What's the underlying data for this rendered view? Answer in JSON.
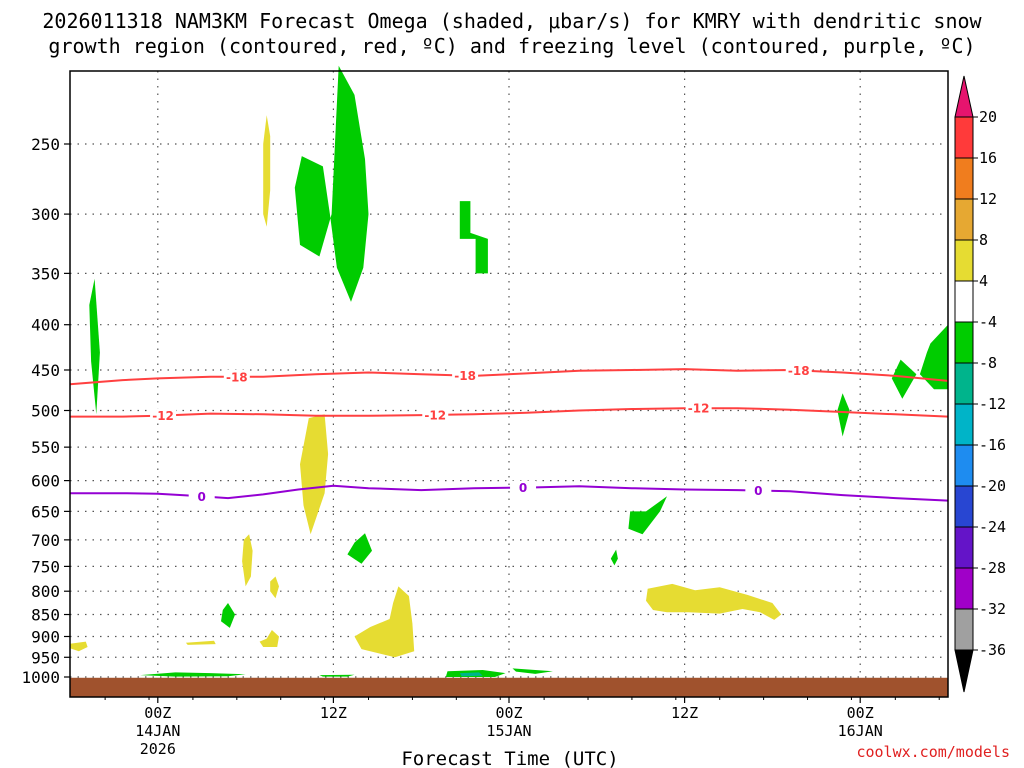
{
  "title_line1": "2026011318 NAM3KM Forecast Omega (shaded, μbar/s) for KMRY with dendritic snow",
  "title_line2": "growth region (contoured, red, ºC) and freezing level (contoured, purple, ºC)",
  "credit": "coolwx.com/models",
  "colors": {
    "green": "#00cc00",
    "yellow": "#e6dc32",
    "teal": "#00b48c",
    "ground": "#a0522d",
    "red_contour": "#ff4040",
    "purple_contour": "#9400d3",
    "grid": "#555555"
  },
  "chart_data": {
    "type": "heatmap",
    "title": "2026011318 NAM3KM Forecast Omega (shaded, μbar/s) for KMRY",
    "xlabel": "Forecast Time (UTC)",
    "ylabel": "",
    "x_range_hours": [
      -5,
      45
    ],
    "y_range_mb": [
      1015,
      200
    ],
    "y_ticks": [
      250,
      300,
      350,
      400,
      450,
      500,
      550,
      600,
      650,
      700,
      750,
      800,
      850,
      900,
      950,
      1000
    ],
    "x_ticks": [
      {
        "hour": 0,
        "lines": [
          "00Z",
          "14JAN",
          "2026"
        ]
      },
      {
        "hour": 10,
        "lines": [
          "12Z"
        ]
      },
      {
        "hour": 20,
        "lines": [
          "00Z",
          "15JAN"
        ]
      },
      {
        "hour": 30,
        "lines": [
          "12Z"
        ]
      },
      {
        "hour": 40,
        "lines": [
          "00Z",
          "16JAN"
        ]
      }
    ],
    "colorbar": {
      "labels": [
        20,
        16,
        12,
        8,
        4,
        -4,
        -8,
        -12,
        -16,
        -20,
        -24,
        -28,
        -32,
        -36
      ],
      "bands": [
        {
          "from": 20,
          "to": 16,
          "color": "#ff3a3a"
        },
        {
          "from": 16,
          "to": 12,
          "color": "#f07d1e"
        },
        {
          "from": 12,
          "to": 8,
          "color": "#e6a832"
        },
        {
          "from": 8,
          "to": 4,
          "color": "#e6dc32"
        },
        {
          "from": 4,
          "to": -4,
          "color": "#ffffff"
        },
        {
          "from": -4,
          "to": -8,
          "color": "#00cc00"
        },
        {
          "from": -8,
          "to": -12,
          "color": "#00b48c"
        },
        {
          "from": -12,
          "to": -16,
          "color": "#00b4c8"
        },
        {
          "from": -16,
          "to": -20,
          "color": "#1e8cf0"
        },
        {
          "from": -20,
          "to": -24,
          "color": "#2846d2"
        },
        {
          "from": -24,
          "to": -28,
          "color": "#6414c8"
        },
        {
          "from": -28,
          "to": -32,
          "color": "#a000c8"
        },
        {
          "from": -32,
          "to": -36,
          "color": "#a0a0a0"
        }
      ],
      "top_arrow_color": "#e6146e",
      "bottom_arrow_color": "#000000"
    },
    "contours": [
      {
        "name": "-18C isotherm",
        "label": "-18",
        "color": "#ff4040",
        "x": [
          -5,
          -2,
          0,
          3,
          6,
          9,
          12,
          15,
          18,
          21,
          24,
          27,
          30,
          33,
          36,
          39,
          42,
          45
        ],
        "y": [
          467,
          462,
          460,
          458,
          458,
          455,
          453,
          455,
          457,
          454,
          451,
          450,
          449,
          451,
          450,
          453,
          457,
          463
        ],
        "label_hours": [
          4.5,
          17.5,
          36.5
        ]
      },
      {
        "name": "-12C isotherm",
        "label": "-12",
        "color": "#ff4040",
        "x": [
          -5,
          -2,
          0,
          3,
          6,
          9,
          12,
          15,
          18,
          21,
          24,
          27,
          30,
          33,
          36,
          39,
          42,
          45
        ],
        "y": [
          508,
          508,
          507,
          504,
          505,
          507,
          507,
          506,
          505,
          503,
          500,
          498,
          497,
          497,
          499,
          502,
          505,
          508
        ],
        "label_hours": [
          0.3,
          15.8,
          30.8
        ]
      },
      {
        "name": "0C freezing level",
        "label": "0",
        "color": "#9400d3",
        "x": [
          -5,
          -2,
          0,
          2,
          4,
          6,
          8,
          10,
          12,
          15,
          18,
          21,
          24,
          27,
          30,
          33,
          36,
          39,
          42,
          45
        ],
        "y": [
          620,
          620,
          621,
          624,
          628,
          622,
          614,
          608,
          612,
          615,
          612,
          611,
          609,
          612,
          614,
          615,
          617,
          623,
          628,
          632
        ],
        "label_hours": [
          2.5,
          20.8,
          34.2
        ]
      }
    ],
    "omega_regions": [
      {
        "category": "-4 to -8",
        "color": "#00cc00",
        "points": [
          [
            10.3,
            204
          ],
          [
            11.2,
            220
          ],
          [
            11.8,
            260
          ],
          [
            12,
            300
          ],
          [
            11.7,
            345
          ],
          [
            11,
            377
          ],
          [
            10.2,
            345
          ],
          [
            9.8,
            300
          ],
          [
            9.4,
            265
          ],
          [
            8.2,
            258
          ],
          [
            7.8,
            280
          ],
          [
            8.1,
            325
          ],
          [
            9.2,
            335
          ],
          [
            9.9,
            300
          ]
        ]
      },
      {
        "category": "-4 to -8",
        "color": "#00cc00",
        "points": [
          [
            -3.6,
            355
          ],
          [
            -3.3,
            430
          ],
          [
            -3.5,
            505
          ],
          [
            -3.8,
            440
          ],
          [
            -3.9,
            380
          ]
        ]
      },
      {
        "category": "-4 to -8",
        "color": "#00cc00",
        "points": [
          [
            17.2,
            290
          ],
          [
            17.8,
            290
          ],
          [
            17.8,
            315
          ],
          [
            18.8,
            320
          ],
          [
            18.8,
            350
          ],
          [
            18.1,
            350
          ],
          [
            18.1,
            320
          ],
          [
            17.2,
            320
          ]
        ]
      },
      {
        "category": "-4 to -8",
        "color": "#00cc00",
        "points": [
          [
            44,
            420
          ],
          [
            45,
            400
          ],
          [
            45,
            473
          ],
          [
            44.2,
            473
          ],
          [
            43.4,
            455
          ],
          [
            43.8,
            430
          ]
        ]
      },
      {
        "category": "-4 to -8",
        "color": "#00cc00",
        "points": [
          [
            42.3,
            438
          ],
          [
            43.2,
            455
          ],
          [
            42.4,
            485
          ],
          [
            41.8,
            460
          ]
        ]
      },
      {
        "category": "-4 to -8",
        "color": "#00cc00",
        "points": [
          [
            39,
            478
          ],
          [
            39.4,
            500
          ],
          [
            39,
            535
          ],
          [
            38.7,
            500
          ]
        ]
      },
      {
        "category": "-4 to -8",
        "color": "#00cc00",
        "points": [
          [
            27.8,
            650
          ],
          [
            29,
            625
          ],
          [
            28.6,
            650
          ],
          [
            27.6,
            690
          ],
          [
            26.8,
            680
          ],
          [
            26.9,
            650
          ]
        ]
      },
      {
        "category": "-4 to -8",
        "color": "#00cc00",
        "points": [
          [
            11.8,
            688
          ],
          [
            12.2,
            720
          ],
          [
            11.6,
            745
          ],
          [
            10.8,
            727
          ],
          [
            11.2,
            705
          ]
        ]
      },
      {
        "category": "-4 to -8",
        "color": "#00cc00",
        "points": [
          [
            26.1,
            718
          ],
          [
            26.2,
            735
          ],
          [
            26,
            748
          ],
          [
            25.8,
            735
          ]
        ]
      },
      {
        "category": "-4 to -8",
        "color": "#00cc00",
        "points": [
          [
            4,
            825
          ],
          [
            4.4,
            850
          ],
          [
            4.1,
            880
          ],
          [
            3.6,
            865
          ],
          [
            3.7,
            840
          ]
        ]
      },
      {
        "category": "-4 to -8",
        "color": "#00cc00",
        "points": [
          [
            -1,
            995
          ],
          [
            1,
            988
          ],
          [
            3,
            990
          ],
          [
            5,
            993
          ],
          [
            4,
            998
          ],
          [
            1,
            999
          ]
        ]
      },
      {
        "category": "-4 to -8",
        "color": "#00cc00",
        "points": [
          [
            16.5,
            985
          ],
          [
            18.5,
            982
          ],
          [
            19.8,
            990
          ],
          [
            19.2,
            1000
          ],
          [
            16.4,
            1000
          ]
        ]
      },
      {
        "category": "-4 to -8",
        "color": "#00cc00",
        "points": [
          [
            20.2,
            978
          ],
          [
            22.5,
            985
          ],
          [
            21.5,
            992
          ],
          [
            20.4,
            986
          ]
        ]
      },
      {
        "category": "-4 to -8",
        "color": "#00cc00",
        "points": [
          [
            9.2,
            995
          ],
          [
            11.2,
            994
          ],
          [
            10.8,
            999
          ],
          [
            9.4,
            999
          ]
        ]
      },
      {
        "category": "-8 to -12",
        "color": "#00b48c",
        "points": [
          [
            17.2,
            990
          ],
          [
            18.3,
            988
          ],
          [
            18.5,
            997
          ],
          [
            17.3,
            998
          ]
        ]
      },
      {
        "category": "4 to 8",
        "color": "#e6dc32",
        "points": [
          [
            6.2,
            310
          ],
          [
            6.4,
            282
          ],
          [
            6.4,
            245
          ],
          [
            6.2,
            232
          ],
          [
            6.0,
            250
          ],
          [
            6.0,
            300
          ]
        ]
      },
      {
        "category": "4 to 8",
        "color": "#e6dc32",
        "points": [
          [
            8.6,
            510
          ],
          [
            9.5,
            505
          ],
          [
            9.7,
            560
          ],
          [
            9.5,
            620
          ],
          [
            8.7,
            690
          ],
          [
            8.3,
            640
          ],
          [
            8.1,
            575
          ],
          [
            8.4,
            535
          ]
        ]
      },
      {
        "category": "4 to 8",
        "color": "#e6dc32",
        "points": [
          [
            5.2,
            690
          ],
          [
            5.4,
            720
          ],
          [
            5.3,
            770
          ],
          [
            5,
            790
          ],
          [
            4.8,
            740
          ],
          [
            4.9,
            700
          ]
        ]
      },
      {
        "category": "4 to 8",
        "color": "#e6dc32",
        "points": [
          [
            6.7,
            770
          ],
          [
            6.9,
            790
          ],
          [
            6.7,
            815
          ],
          [
            6.4,
            800
          ],
          [
            6.4,
            780
          ]
        ]
      },
      {
        "category": "4 to 8",
        "color": "#e6dc32",
        "points": [
          [
            13.7,
            790
          ],
          [
            14.3,
            810
          ],
          [
            14.5,
            870
          ],
          [
            14.6,
            935
          ],
          [
            13.5,
            950
          ],
          [
            11.6,
            930
          ],
          [
            11.2,
            900
          ],
          [
            12.1,
            878
          ],
          [
            13.2,
            860
          ],
          [
            13.4,
            825
          ]
        ]
      },
      {
        "category": "4 to 8",
        "color": "#e6dc32",
        "points": [
          [
            6.5,
            885
          ],
          [
            6.9,
            900
          ],
          [
            6.8,
            925
          ],
          [
            6.0,
            925
          ],
          [
            5.8,
            912
          ],
          [
            6.2,
            905
          ]
        ]
      },
      {
        "category": "4 to 8",
        "color": "#e6dc32",
        "points": [
          [
            1.6,
            915
          ],
          [
            3.2,
            910
          ],
          [
            3.3,
            918
          ],
          [
            1.7,
            920
          ]
        ]
      },
      {
        "category": "4 to 8",
        "color": "#e6dc32",
        "points": [
          [
            -5,
            917
          ],
          [
            -4.1,
            912
          ],
          [
            -4.0,
            925
          ],
          [
            -4.5,
            935
          ],
          [
            -5,
            928
          ]
        ]
      },
      {
        "category": "4 to 8",
        "color": "#e6dc32",
        "points": [
          [
            27.9,
            795
          ],
          [
            29.3,
            785
          ],
          [
            30.6,
            798
          ],
          [
            32,
            792
          ],
          [
            33.6,
            808
          ],
          [
            35,
            825
          ],
          [
            35.5,
            850
          ],
          [
            35.1,
            862
          ],
          [
            34.3,
            845
          ],
          [
            33.3,
            838
          ],
          [
            32,
            848
          ],
          [
            30.2,
            845
          ],
          [
            29,
            845
          ],
          [
            28.2,
            840
          ],
          [
            27.8,
            820
          ]
        ]
      }
    ],
    "ground_top_mb": 1002
  }
}
